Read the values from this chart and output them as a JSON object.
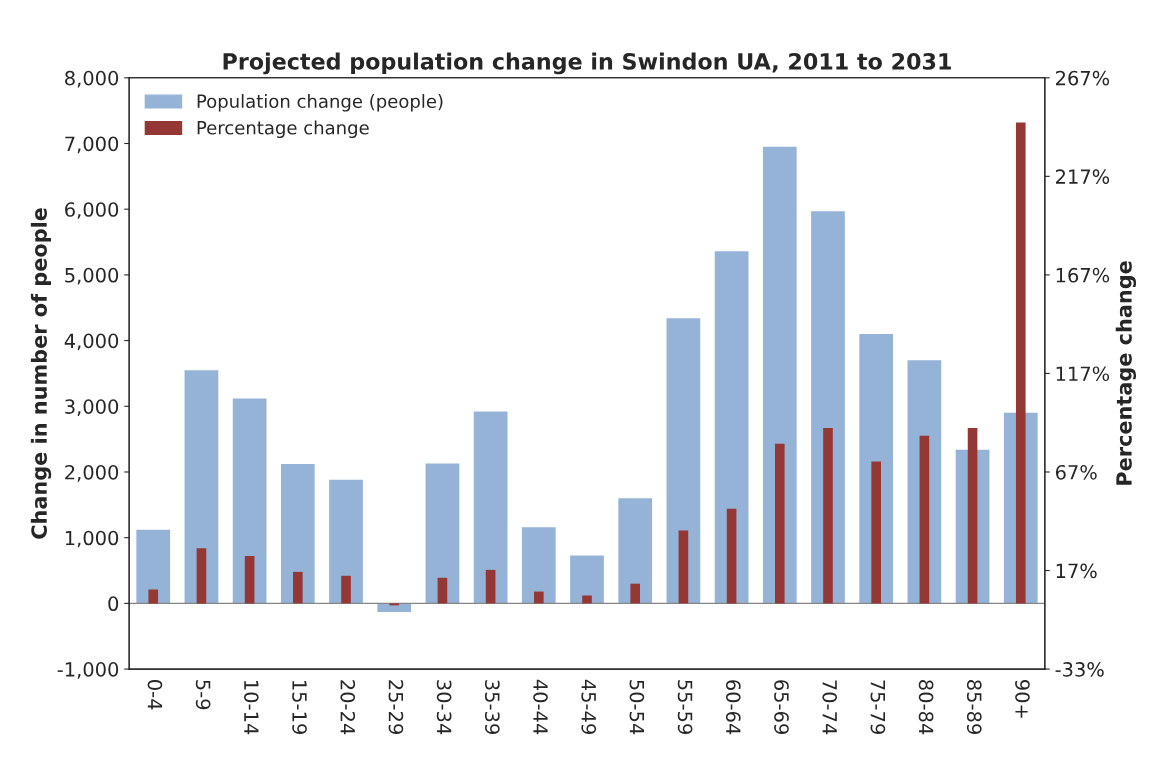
{
  "chart_data": {
    "type": "bar",
    "title": "Projected population change in Swindon UA, 2011 to 2031",
    "ylabel": "Change in number of people",
    "y2label": "Percentage change",
    "categories": [
      "0-4",
      "5-9",
      "10-14",
      "15-19",
      "20-24",
      "25-29",
      "30-34",
      "35-39",
      "40-44",
      "45-49",
      "50-54",
      "55-59",
      "60-64",
      "65-69",
      "70-74",
      "75-79",
      "80-84",
      "85-89",
      "90+"
    ],
    "series": [
      {
        "name": "Population change (people)",
        "color": "#95b3d7",
        "values": [
          1120,
          3550,
          3120,
          2120,
          1880,
          -130,
          2130,
          2920,
          1160,
          730,
          1600,
          4340,
          5360,
          6950,
          5970,
          4100,
          3700,
          2340,
          2900
        ]
      },
      {
        "name": "Percentage change",
        "color": "#953735",
        "axis": "y2",
        "values": [
          7,
          28,
          24,
          16,
          14,
          -1,
          13,
          17,
          6,
          4,
          10,
          37,
          48,
          81,
          89,
          72,
          85,
          89,
          244
        ]
      }
    ],
    "ylim": [
      -1000,
      8000
    ],
    "yticks": [
      {
        "value": -1000,
        "label": "-1,000"
      },
      0,
      {
        "value": 1000,
        "label": "1,000"
      },
      {
        "value": 2000,
        "label": "2,000"
      },
      {
        "value": 3000,
        "label": "3,000"
      },
      {
        "value": 4000,
        "label": "4,000"
      },
      {
        "value": 5000,
        "label": "5,000"
      },
      {
        "value": 6000,
        "label": "6,000"
      },
      {
        "value": 7000,
        "label": "7,000"
      },
      {
        "value": 8000,
        "label": "8,000"
      }
    ],
    "y2lim": [
      -33.33,
      266.67
    ],
    "y2ticks": [
      {
        "value": -33.33,
        "label": "-33%"
      },
      {
        "value": 16.67,
        "label": "17%"
      },
      {
        "value": 66.67,
        "label": "67%"
      },
      {
        "value": 116.67,
        "label": "117%"
      },
      {
        "value": 166.67,
        "label": "167%"
      },
      {
        "value": 216.67,
        "label": "217%"
      },
      {
        "value": 266.67,
        "label": "267%"
      }
    ],
    "legend": "top left"
  }
}
